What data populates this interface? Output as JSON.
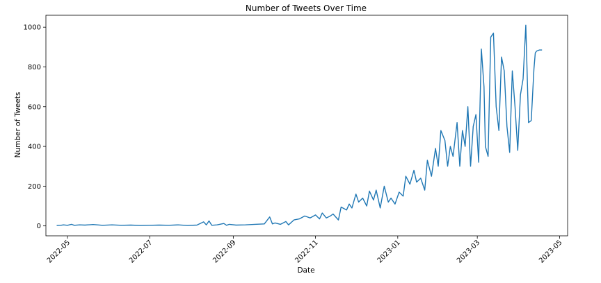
{
  "chart_data": {
    "type": "line",
    "title": "Number of Tweets Over Time",
    "xlabel": "Date",
    "ylabel": "Number of Tweets",
    "x_tick_labels": [
      "2022-05",
      "2022-07",
      "2022-09",
      "2022-11",
      "2023-01",
      "2023-03",
      "2023-05"
    ],
    "y_tick_labels": [
      "0",
      "200",
      "400",
      "600",
      "800",
      "1000"
    ],
    "y_ticks": [
      0,
      200,
      400,
      600,
      800,
      1000
    ],
    "xlim": [
      "2022-04-15",
      "2023-05-07"
    ],
    "ylim": [
      -50,
      1060
    ],
    "grid": false,
    "line_color": "#1f77b4",
    "series": [
      {
        "x": [
          "2022-04-23",
          "2022-04-26",
          "2022-04-28",
          "2022-05-01",
          "2022-05-04",
          "2022-05-06",
          "2022-05-10",
          "2022-05-14",
          "2022-05-20",
          "2022-05-27",
          "2022-06-03",
          "2022-06-10",
          "2022-06-17",
          "2022-06-24",
          "2022-07-01",
          "2022-07-08",
          "2022-07-15",
          "2022-07-22",
          "2022-07-29",
          "2022-08-05",
          "2022-08-10",
          "2022-08-12",
          "2022-08-14",
          "2022-08-16",
          "2022-08-20",
          "2022-08-25",
          "2022-08-27",
          "2022-08-29",
          "2022-09-03",
          "2022-09-10",
          "2022-09-17",
          "2022-09-24",
          "2022-09-28",
          "2022-09-30",
          "2022-10-02",
          "2022-10-06",
          "2022-10-10",
          "2022-10-12",
          "2022-10-16",
          "2022-10-20",
          "2022-10-24",
          "2022-10-28",
          "2022-11-01",
          "2022-11-04",
          "2022-11-06",
          "2022-11-09",
          "2022-11-12",
          "2022-11-14",
          "2022-11-18",
          "2022-11-20",
          "2022-11-24",
          "2022-11-26",
          "2022-11-28",
          "2022-12-01",
          "2022-12-03",
          "2022-12-06",
          "2022-12-09",
          "2022-12-11",
          "2022-12-14",
          "2022-12-16",
          "2022-12-19",
          "2022-12-22",
          "2022-12-25",
          "2022-12-27",
          "2022-12-30",
          "2023-01-02",
          "2023-01-05",
          "2023-01-07",
          "2023-01-10",
          "2023-01-13",
          "2023-01-15",
          "2023-01-18",
          "2023-01-21",
          "2023-01-23",
          "2023-01-26",
          "2023-01-29",
          "2023-01-31",
          "2023-02-02",
          "2023-02-05",
          "2023-02-07",
          "2023-02-09",
          "2023-02-11",
          "2023-02-14",
          "2023-02-16",
          "2023-02-18",
          "2023-02-20",
          "2023-02-22",
          "2023-02-24",
          "2023-02-26",
          "2023-02-28",
          "2023-03-02",
          "2023-03-04",
          "2023-03-06",
          "2023-03-07",
          "2023-03-09",
          "2023-03-11",
          "2023-03-13",
          "2023-03-15",
          "2023-03-17",
          "2023-03-19",
          "2023-03-21",
          "2023-03-23",
          "2023-03-25",
          "2023-03-27",
          "2023-03-29",
          "2023-03-31",
          "2023-04-02",
          "2023-04-04",
          "2023-04-06",
          "2023-04-08",
          "2023-04-10",
          "2023-04-12",
          "2023-04-13",
          "2023-04-14",
          "2023-04-16",
          "2023-04-18"
        ],
        "y": [
          2,
          3,
          5,
          3,
          8,
          3,
          5,
          4,
          7,
          3,
          5,
          3,
          4,
          2,
          3,
          4,
          3,
          5,
          2,
          4,
          20,
          5,
          25,
          3,
          5,
          12,
          3,
          8,
          4,
          5,
          8,
          10,
          45,
          10,
          15,
          8,
          22,
          5,
          30,
          35,
          50,
          40,
          55,
          35,
          65,
          40,
          50,
          60,
          30,
          95,
          80,
          110,
          90,
          160,
          120,
          140,
          100,
          175,
          130,
          180,
          90,
          200,
          120,
          140,
          110,
          170,
          150,
          250,
          210,
          280,
          220,
          240,
          180,
          330,
          250,
          390,
          300,
          480,
          430,
          300,
          400,
          350,
          520,
          300,
          480,
          400,
          600,
          300,
          500,
          560,
          320,
          890,
          700,
          400,
          350,
          950,
          970,
          600,
          480,
          850,
          780,
          500,
          370,
          780,
          600,
          380,
          660,
          740,
          1010,
          520,
          530,
          790,
          870,
          880,
          885,
          885
        ]
      }
    ]
  }
}
